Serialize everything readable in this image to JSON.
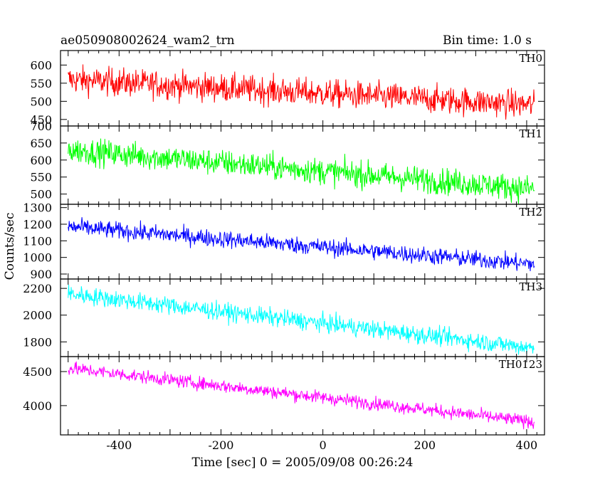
{
  "header": {
    "title": "ae050908002624_wam2_trn",
    "bin_time": "Bin time: 1.0 s"
  },
  "chart_data": {
    "type": "line",
    "xlabel": "Time [sec] 0 = 2005/09/08 00:26:24",
    "ylabel": "Counts/sec",
    "xlim": [
      -515,
      435
    ],
    "x_ticks": [
      -400,
      -200,
      0,
      200,
      400
    ],
    "x_range_data": [
      -500,
      415
    ],
    "grid": false,
    "panels": [
      {
        "name": "TH0",
        "color": "#ff0000",
        "ylim": [
          432,
          640
        ],
        "y_ticks": [
          450,
          500,
          550,
          600
        ],
        "trend_start": 560,
        "trend_end": 490,
        "noise": 26
      },
      {
        "name": "TH1",
        "color": "#00ff00",
        "ylim": [
          470,
          700
        ],
        "y_ticks": [
          500,
          550,
          600,
          650,
          700
        ],
        "trend_start": 630,
        "trend_end": 515,
        "noise": 26
      },
      {
        "name": "TH2",
        "color": "#0000ff",
        "ylim": [
          870,
          1320
        ],
        "y_ticks": [
          900,
          1000,
          1100,
          1200,
          1300
        ],
        "trend_start": 1185,
        "trend_end": 960,
        "noise": 35
      },
      {
        "name": "TH3",
        "color": "#00ffff",
        "ylim": [
          1690,
          2270
        ],
        "y_ticks": [
          1800,
          2000,
          2200
        ],
        "trend_start": 2160,
        "trend_end": 1755,
        "noise": 45
      },
      {
        "name": "TH0123",
        "color": "#ff00ff",
        "ylim": [
          3570,
          4720
        ],
        "y_ticks": [
          4000,
          4500
        ],
        "trend_start": 4550,
        "trend_end": 3760,
        "noise": 65
      }
    ]
  }
}
